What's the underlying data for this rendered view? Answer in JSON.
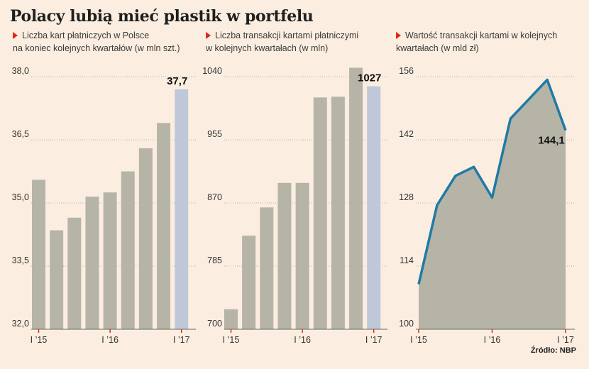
{
  "title": "Polacy lubią mieć plastik w portfelu",
  "source": "Źródło: NBP",
  "colors": {
    "bar": "#b6b4a6",
    "bar_highlight": "#bfc8d8",
    "line": "#1f7aa6",
    "area": "#b6b4a6",
    "marker": "#e1261c",
    "background": "#fbeee0"
  },
  "chart_data": [
    {
      "type": "bar",
      "subtitle_line1": "Liczba kart płatniczych w Polsce",
      "subtitle_line2": "na koniec kolejnych kwartałów (w mln szt.)",
      "x_labels": [
        "I ’15",
        "I ’16",
        "I ’17"
      ],
      "y_ticks": [
        "38,0",
        "36,5",
        "35,0",
        "33,5",
        "32,0"
      ],
      "y_tick_values": [
        38.0,
        36.5,
        35.0,
        33.5,
        32.0
      ],
      "ylim": [
        32.0,
        38.0
      ],
      "values": [
        35.55,
        34.35,
        34.65,
        35.15,
        35.25,
        35.75,
        36.3,
        36.9,
        37.7
      ],
      "highlight_index": 8,
      "last_label": "37,7"
    },
    {
      "type": "bar",
      "subtitle_line1": "Liczba transakcji kartami płatniczymi",
      "subtitle_line2": "w kolejnych kwartałach (w mln)",
      "x_labels": [
        "I ’15",
        "I ’16",
        "I ’17"
      ],
      "y_ticks": [
        "1040",
        "955",
        "870",
        "785",
        "700"
      ],
      "y_tick_values": [
        1040,
        955,
        870,
        785,
        700
      ],
      "ylim": [
        700,
        1040
      ],
      "values": [
        727,
        826,
        864,
        897,
        897,
        1012,
        1013,
        1052,
        1027
      ],
      "highlight_index": 8,
      "last_label": "1027"
    },
    {
      "type": "area",
      "subtitle_line1": "Wartość transakcji kartami w kolejnych",
      "subtitle_line2": "kwartałach (w mld zł)",
      "x_labels": [
        "I ’15",
        "I ’16",
        "I ’17"
      ],
      "y_ticks": [
        "156",
        "142",
        "128",
        "114",
        "100"
      ],
      "y_tick_values": [
        156,
        142,
        128,
        114,
        100
      ],
      "ylim": [
        100,
        156
      ],
      "values": [
        110,
        127.5,
        134,
        136,
        129.2,
        146.7,
        151,
        155.3,
        144.1
      ],
      "last_label": "144,1"
    }
  ]
}
